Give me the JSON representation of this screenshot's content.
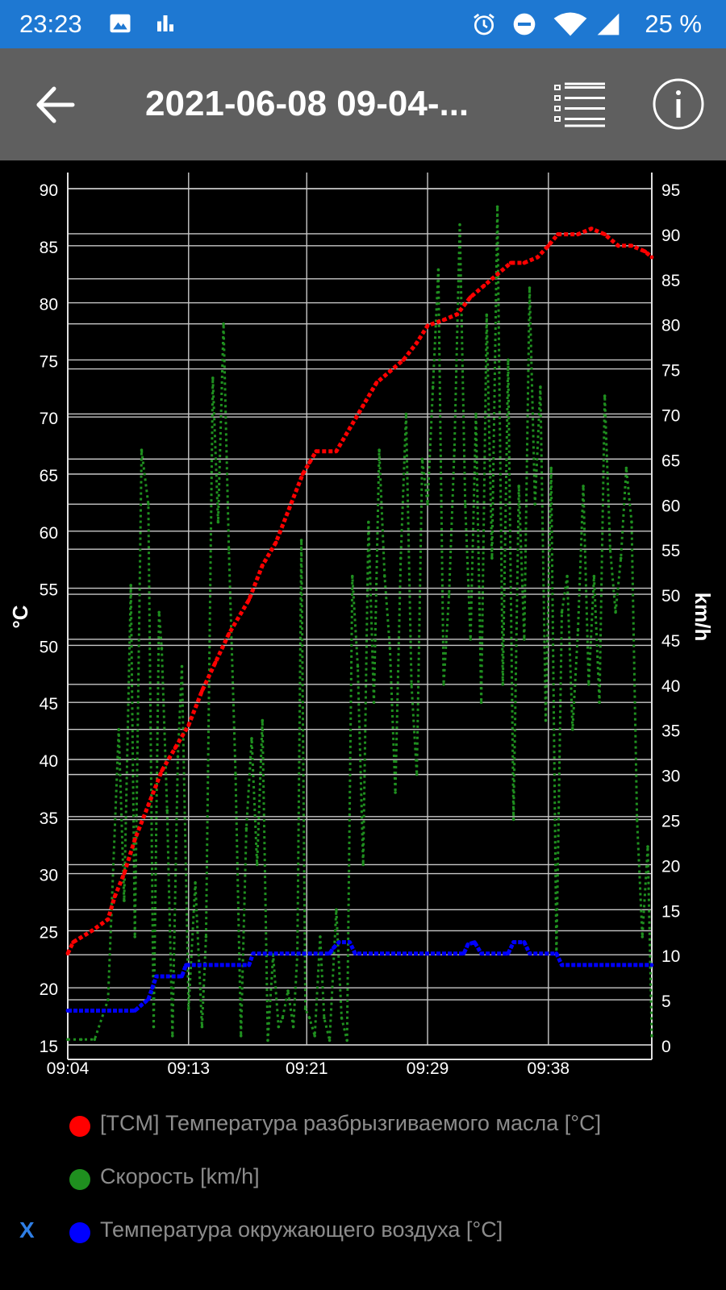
{
  "status_bar": {
    "time": "23:23",
    "battery": "25 %",
    "icons": [
      "image-icon",
      "bar-chart-icon",
      "alarm-icon",
      "do-not-disturb-icon",
      "wifi-icon",
      "signal-icon"
    ]
  },
  "app_bar": {
    "title": "2021-06-08 09-04-...",
    "back_icon": "arrow-back-icon",
    "list_icon": "list-icon",
    "info_icon": "info-icon"
  },
  "colors": {
    "status_bar": "#1e78d2",
    "app_bar": "#5f5f5f",
    "oil_temp": "#ff0000",
    "speed": "#1f8f1f",
    "ambient_temp": "#0000ff",
    "grid": "#c8c8c8"
  },
  "chart_data": {
    "type": "scatter",
    "x_ticks": [
      "09:04",
      "09:13",
      "09:21",
      "09:29",
      "09:38"
    ],
    "x_range_minutes": [
      0,
      43.5
    ],
    "x_tick_minutes": [
      0,
      9,
      17.8,
      26.8,
      35.8
    ],
    "y_left": {
      "label": "°C",
      "ticks": [
        90,
        85,
        80,
        75,
        70,
        65,
        60,
        55,
        50,
        45,
        40,
        35,
        30,
        25,
        20,
        15
      ],
      "range": [
        15,
        90
      ]
    },
    "y_right": {
      "label": "km/h",
      "ticks": [
        95,
        90,
        85,
        80,
        75,
        70,
        65,
        60,
        55,
        50,
        45,
        40,
        35,
        30,
        25,
        20,
        15,
        10,
        5,
        0
      ],
      "range": [
        0,
        95
      ]
    },
    "grid": true,
    "legend_placement": "bottom",
    "series": [
      {
        "name": "[TCM] Температура разбрызгиваемого масла [°C]",
        "axis": "left",
        "points": [
          [
            0,
            23
          ],
          [
            0.4,
            24
          ],
          [
            1.8,
            25
          ],
          [
            3,
            26
          ],
          [
            3.5,
            28
          ],
          [
            4.2,
            30
          ],
          [
            5,
            33
          ],
          [
            6,
            36
          ],
          [
            7,
            39
          ],
          [
            8,
            41
          ],
          [
            9,
            43
          ],
          [
            10,
            46
          ],
          [
            11,
            48.5
          ],
          [
            12,
            51
          ],
          [
            13.5,
            54
          ],
          [
            14.5,
            57
          ],
          [
            15.5,
            59
          ],
          [
            16.5,
            62
          ],
          [
            17.5,
            65
          ],
          [
            18,
            66
          ],
          [
            18.5,
            67
          ],
          [
            20,
            67
          ],
          [
            21,
            69
          ],
          [
            22,
            71
          ],
          [
            23,
            73
          ],
          [
            24,
            74
          ],
          [
            25,
            75
          ],
          [
            26,
            76.5
          ],
          [
            26.8,
            78
          ],
          [
            28,
            78.5
          ],
          [
            29,
            79
          ],
          [
            30,
            80.5
          ],
          [
            31,
            81.5
          ],
          [
            32,
            82.5
          ],
          [
            33,
            83.5
          ],
          [
            34,
            83.5
          ],
          [
            35,
            84
          ],
          [
            35.8,
            85
          ],
          [
            36.5,
            86
          ],
          [
            38,
            86
          ],
          [
            39,
            86.5
          ],
          [
            40,
            86
          ],
          [
            41,
            85
          ],
          [
            42,
            85
          ],
          [
            43,
            84.5
          ],
          [
            43.5,
            84
          ]
        ]
      },
      {
        "name": "Скорость [km/h]",
        "axis": "right",
        "points": [
          [
            0,
            0.6
          ],
          [
            1,
            0.6
          ],
          [
            2,
            0.6
          ],
          [
            3,
            5
          ],
          [
            3.8,
            35
          ],
          [
            4.2,
            16
          ],
          [
            4.7,
            51
          ],
          [
            5,
            12
          ],
          [
            5.5,
            66
          ],
          [
            6,
            60
          ],
          [
            6.4,
            2
          ],
          [
            6.8,
            48
          ],
          [
            7,
            44
          ],
          [
            7.4,
            26
          ],
          [
            7.8,
            1
          ],
          [
            8.2,
            32
          ],
          [
            8.5,
            42
          ],
          [
            9,
            4
          ],
          [
            9.5,
            18
          ],
          [
            10,
            2
          ],
          [
            10.3,
            12
          ],
          [
            10.8,
            74
          ],
          [
            11.2,
            58
          ],
          [
            11.6,
            80
          ],
          [
            12,
            55
          ],
          [
            12.5,
            30
          ],
          [
            12.9,
            1
          ],
          [
            13.3,
            24
          ],
          [
            13.7,
            34
          ],
          [
            14.1,
            20
          ],
          [
            14.5,
            36
          ],
          [
            14.9,
            0.5
          ],
          [
            15.3,
            10
          ],
          [
            15.7,
            2
          ],
          [
            16,
            3
          ],
          [
            16.4,
            6
          ],
          [
            16.8,
            2
          ],
          [
            17.1,
            10
          ],
          [
            17.4,
            56
          ],
          [
            17.7,
            4
          ],
          [
            18,
            3
          ],
          [
            18.4,
            1
          ],
          [
            18.8,
            12
          ],
          [
            19.1,
            3
          ],
          [
            19.5,
            0.5
          ],
          [
            20,
            15
          ],
          [
            20.4,
            3
          ],
          [
            20.8,
            0.5
          ],
          [
            21.2,
            52
          ],
          [
            21.6,
            42
          ],
          [
            22,
            20
          ],
          [
            22.4,
            58
          ],
          [
            22.8,
            38
          ],
          [
            23.2,
            66
          ],
          [
            23.6,
            52
          ],
          [
            24,
            44
          ],
          [
            24.4,
            28
          ],
          [
            24.8,
            54
          ],
          [
            25.2,
            70
          ],
          [
            25.6,
            40
          ],
          [
            26,
            30
          ],
          [
            26.4,
            65
          ],
          [
            26.8,
            60
          ],
          [
            27.2,
            73
          ],
          [
            27.6,
            86
          ],
          [
            28,
            40
          ],
          [
            28.4,
            50
          ],
          [
            28.8,
            66
          ],
          [
            29.2,
            91
          ],
          [
            29.6,
            60
          ],
          [
            30,
            45
          ],
          [
            30.4,
            70
          ],
          [
            30.8,
            38
          ],
          [
            31.2,
            81
          ],
          [
            31.6,
            54
          ],
          [
            32,
            93
          ],
          [
            32.4,
            40
          ],
          [
            32.8,
            76
          ],
          [
            33.2,
            25
          ],
          [
            33.6,
            62
          ],
          [
            34,
            45
          ],
          [
            34.4,
            84
          ],
          [
            34.8,
            60
          ],
          [
            35.2,
            73
          ],
          [
            35.6,
            36
          ],
          [
            36,
            64
          ],
          [
            36.4,
            10
          ],
          [
            36.8,
            48
          ],
          [
            37.2,
            52
          ],
          [
            37.6,
            35
          ],
          [
            38,
            46
          ],
          [
            38.4,
            62
          ],
          [
            38.8,
            40
          ],
          [
            39.2,
            52
          ],
          [
            39.6,
            38
          ],
          [
            40,
            72
          ],
          [
            40.4,
            55
          ],
          [
            40.8,
            48
          ],
          [
            41.2,
            54
          ],
          [
            41.6,
            64
          ],
          [
            42,
            58
          ],
          [
            42.4,
            25
          ],
          [
            42.8,
            12
          ],
          [
            43.2,
            22
          ],
          [
            43.5,
            1
          ]
        ]
      },
      {
        "name": "Температура окружающего воздуха [°C]",
        "axis": "left",
        "points": [
          [
            0,
            18
          ],
          [
            5,
            18
          ],
          [
            5.5,
            18.5
          ],
          [
            6,
            19
          ],
          [
            6.3,
            20
          ],
          [
            6.6,
            21
          ],
          [
            8.5,
            21
          ],
          [
            8.8,
            22
          ],
          [
            13.5,
            22
          ],
          [
            13.8,
            23
          ],
          [
            19.5,
            23
          ],
          [
            19.8,
            23.5
          ],
          [
            20.2,
            24
          ],
          [
            21,
            24
          ],
          [
            21.4,
            23
          ],
          [
            29.5,
            23
          ],
          [
            29.8,
            23.8
          ],
          [
            30.3,
            24
          ],
          [
            30.8,
            23
          ],
          [
            32.8,
            23
          ],
          [
            33.2,
            24
          ],
          [
            34,
            24
          ],
          [
            34.4,
            23
          ],
          [
            36.4,
            23
          ],
          [
            36.8,
            22
          ],
          [
            43.5,
            22
          ]
        ]
      }
    ]
  },
  "legend": {
    "items": [
      {
        "label": "[TCM] Температура разбрызгиваемого масла [°C]",
        "color": "#ff0000"
      },
      {
        "label": "Скорость [km/h]",
        "color": "#1f8f1f"
      },
      {
        "label": "Температура окружающего воздуха [°C]",
        "color": "#0000ff",
        "mark": "X"
      }
    ]
  }
}
